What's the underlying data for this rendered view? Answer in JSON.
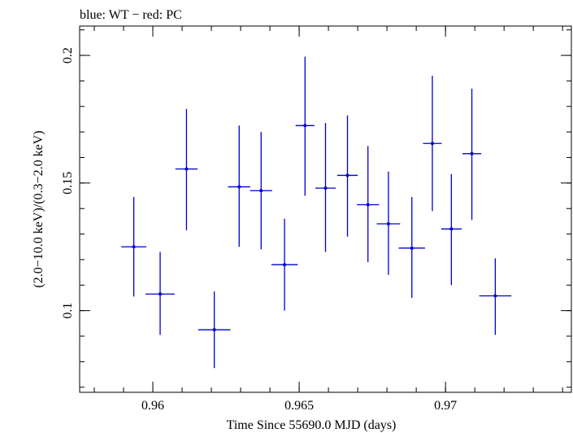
{
  "chart_data": {
    "type": "scatter",
    "title": "blue: WT − red: PC",
    "xlabel": "Time Since 55690.0 MJD (days)",
    "ylabel": "(2.0−10.0 keV)/(0.3−2.0 keV)",
    "xlim": [
      0.9575,
      0.9743
    ],
    "ylim": [
      0.068,
      0.2115
    ],
    "x_ticks": [
      {
        "value": 0.96,
        "label": "0.96"
      },
      {
        "value": 0.965,
        "label": "0.965"
      },
      {
        "value": 0.97,
        "label": "0.97"
      }
    ],
    "y_ticks": [
      {
        "value": 0.1,
        "label": "0.1"
      },
      {
        "value": 0.15,
        "label": "0.15"
      },
      {
        "value": 0.2,
        "label": "0.2"
      }
    ],
    "x_minor_step": 0.001,
    "y_minor_step": 0.01,
    "grid": false,
    "series": [
      {
        "color": "#0000cc",
        "points": [
          {
            "x": 0.95935,
            "y": 0.125,
            "xerr": 0.00043,
            "ylo": 0.1055,
            "yhi": 0.1445
          },
          {
            "x": 0.96025,
            "y": 0.1065,
            "xerr": 0.0005,
            "ylo": 0.0905,
            "yhi": 0.123
          },
          {
            "x": 0.96115,
            "y": 0.1555,
            "xerr": 0.00038,
            "ylo": 0.1315,
            "yhi": 0.179
          },
          {
            "x": 0.9621,
            "y": 0.0925,
            "xerr": 0.00055,
            "ylo": 0.0775,
            "yhi": 0.1075
          },
          {
            "x": 0.96295,
            "y": 0.1485,
            "xerr": 0.00038,
            "ylo": 0.125,
            "yhi": 0.1725
          },
          {
            "x": 0.9637,
            "y": 0.147,
            "xerr": 0.00038,
            "ylo": 0.124,
            "yhi": 0.17
          },
          {
            "x": 0.9645,
            "y": 0.118,
            "xerr": 0.00045,
            "ylo": 0.1,
            "yhi": 0.136
          },
          {
            "x": 0.9652,
            "y": 0.1725,
            "xerr": 0.00032,
            "ylo": 0.145,
            "yhi": 0.1995
          },
          {
            "x": 0.9659,
            "y": 0.148,
            "xerr": 0.00035,
            "ylo": 0.123,
            "yhi": 0.1735
          },
          {
            "x": 0.96665,
            "y": 0.153,
            "xerr": 0.00035,
            "ylo": 0.129,
            "yhi": 0.1765
          },
          {
            "x": 0.96735,
            "y": 0.1415,
            "xerr": 0.00038,
            "ylo": 0.119,
            "yhi": 0.1645
          },
          {
            "x": 0.96805,
            "y": 0.134,
            "xerr": 0.0004,
            "ylo": 0.114,
            "yhi": 0.1545
          },
          {
            "x": 0.96885,
            "y": 0.1245,
            "xerr": 0.00045,
            "ylo": 0.105,
            "yhi": 0.1445
          },
          {
            "x": 0.96955,
            "y": 0.1655,
            "xerr": 0.00032,
            "ylo": 0.139,
            "yhi": 0.192
          },
          {
            "x": 0.9702,
            "y": 0.132,
            "xerr": 0.00035,
            "ylo": 0.11,
            "yhi": 0.1535
          },
          {
            "x": 0.9709,
            "y": 0.1615,
            "xerr": 0.00032,
            "ylo": 0.1355,
            "yhi": 0.187
          },
          {
            "x": 0.9717,
            "y": 0.1058,
            "xerr": 0.00055,
            "ylo": 0.0905,
            "yhi": 0.1205
          }
        ]
      }
    ]
  }
}
